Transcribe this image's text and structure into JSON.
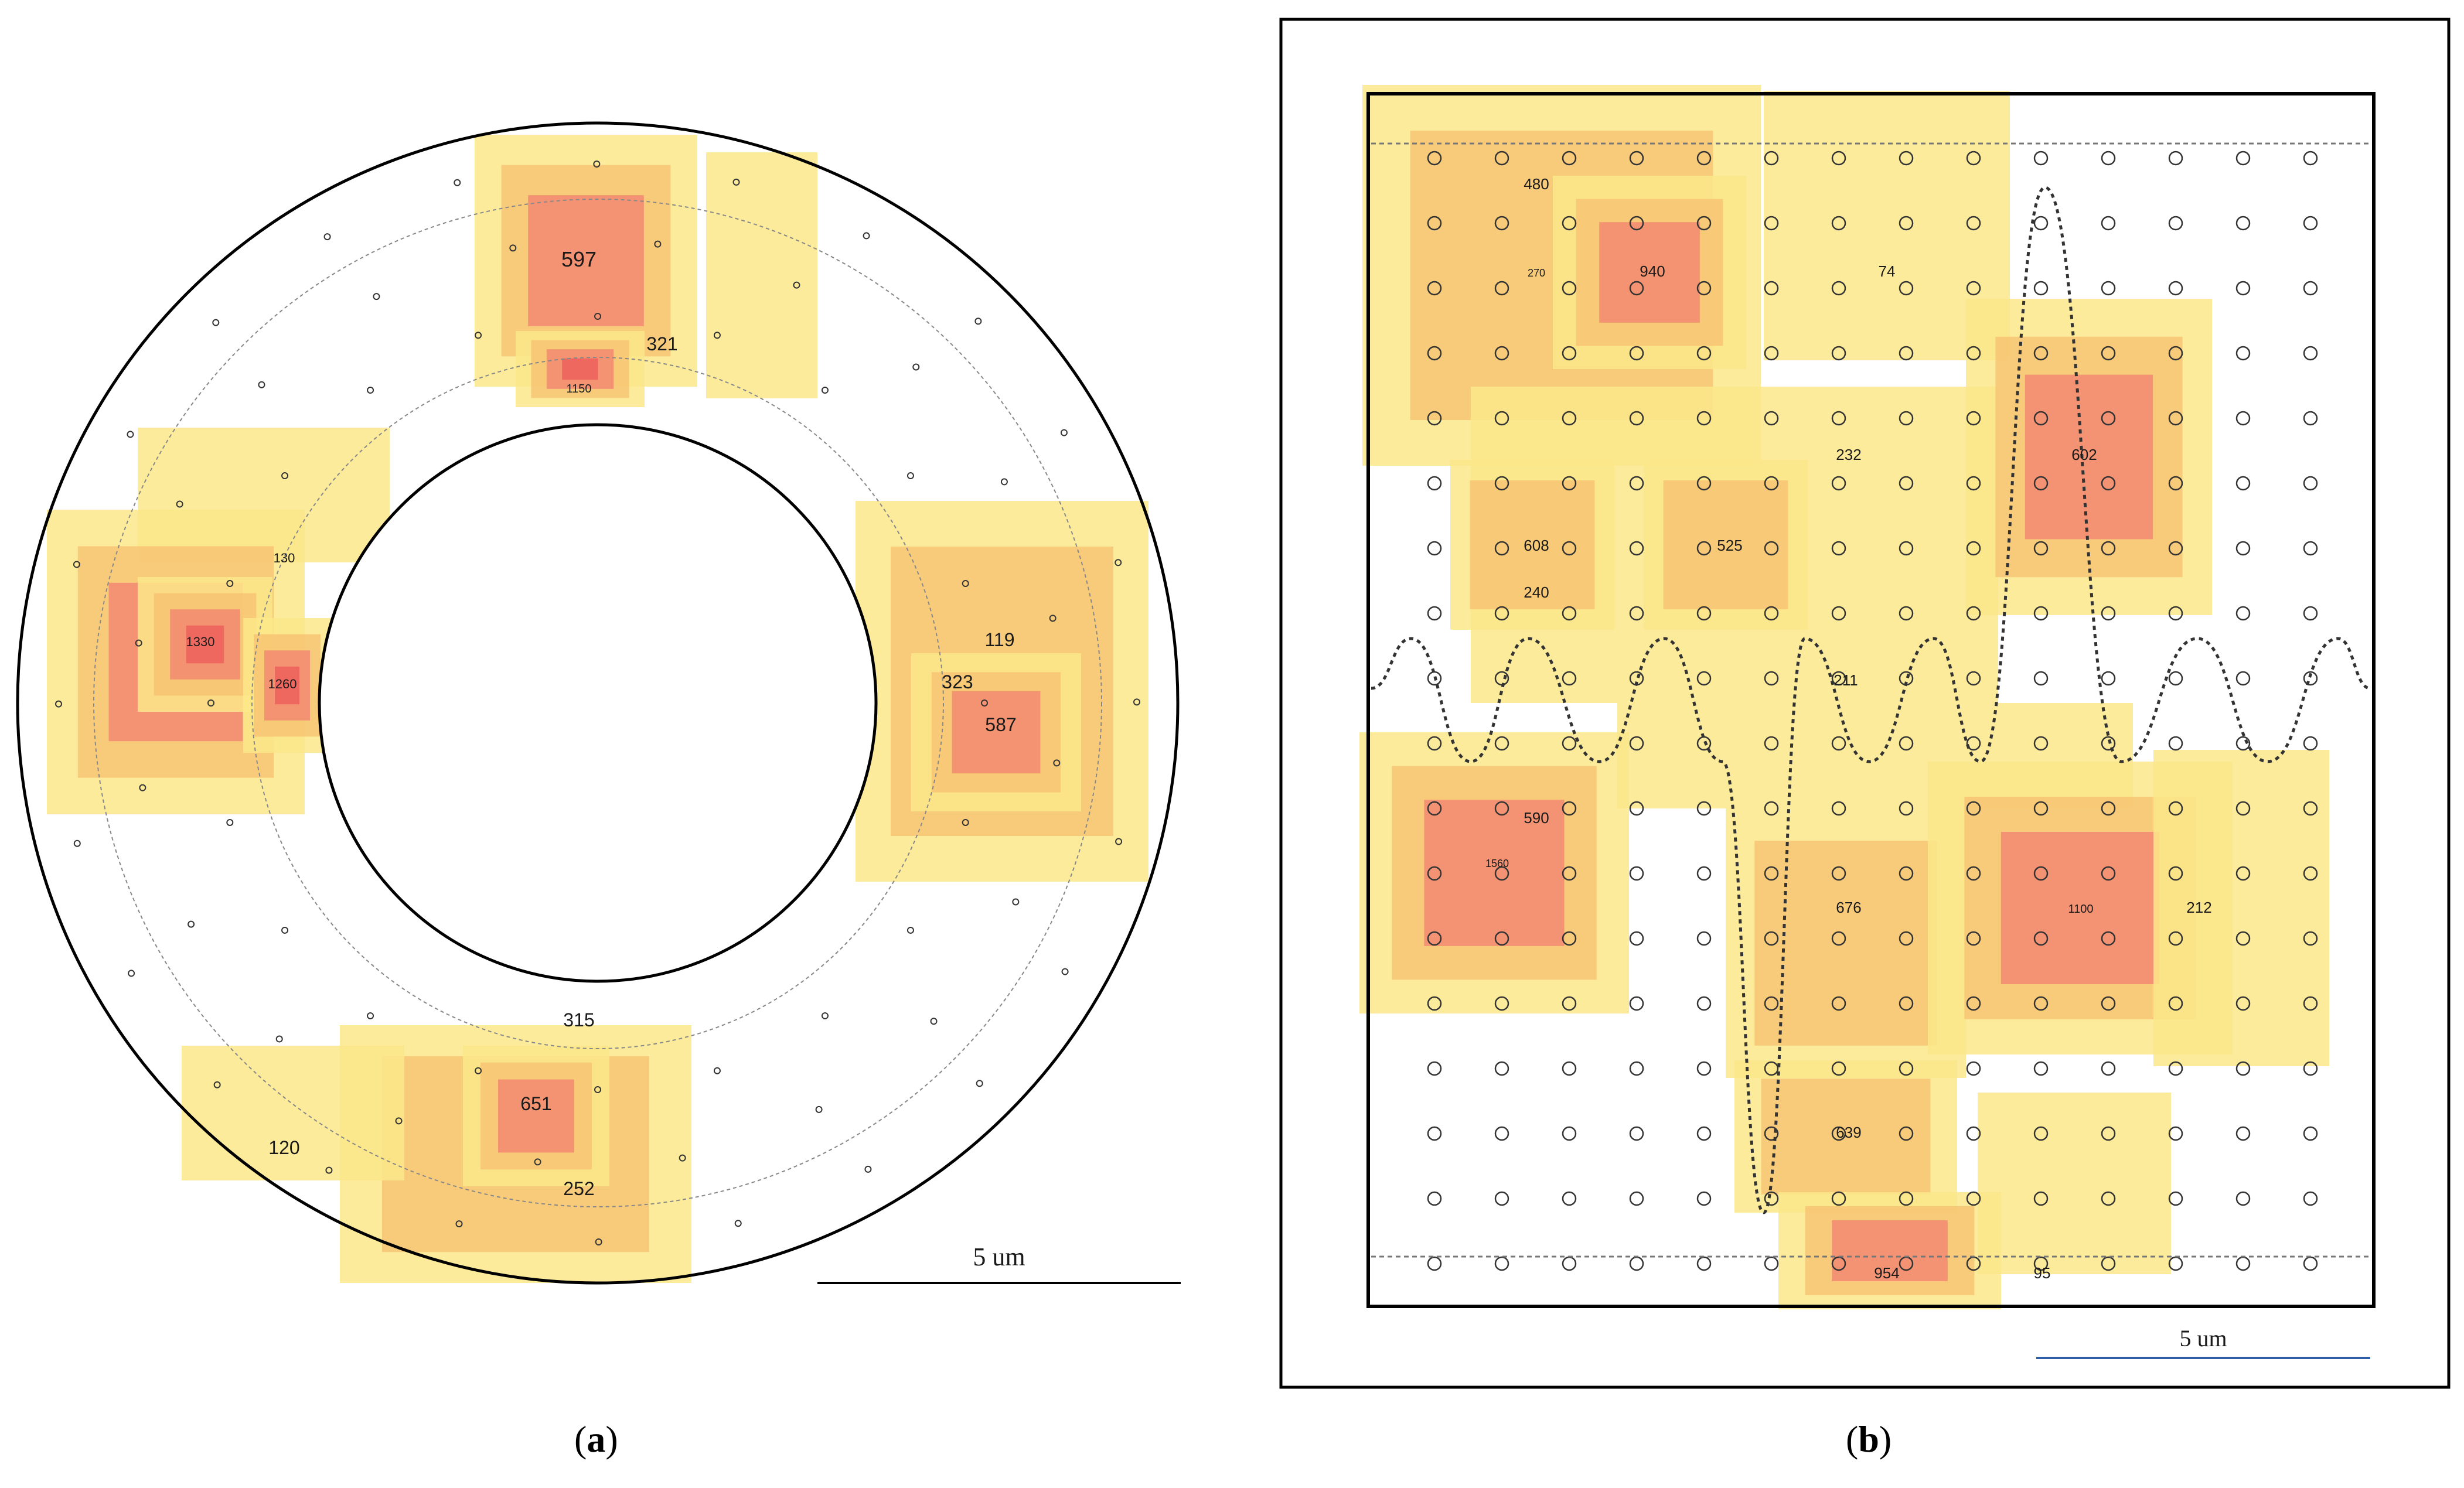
{
  "panel_a": {
    "caption_letter": "a",
    "scale_bar": "5 um",
    "regions": [
      {
        "label": "597"
      },
      {
        "label": "321"
      },
      {
        "label": "1150"
      },
      {
        "label": "130"
      },
      {
        "label": "1330"
      },
      {
        "label": "1260"
      },
      {
        "label": "119"
      },
      {
        "label": "323"
      },
      {
        "label": "587"
      },
      {
        "label": "315"
      },
      {
        "label": "651"
      },
      {
        "label": "120"
      },
      {
        "label": "252"
      }
    ]
  },
  "panel_b": {
    "caption_letter": "b",
    "scale_bar": "5 um",
    "regions": [
      {
        "label": "480"
      },
      {
        "label": "270"
      },
      {
        "label": "940"
      },
      {
        "label": "74"
      },
      {
        "label": "232"
      },
      {
        "label": "602"
      },
      {
        "label": "608"
      },
      {
        "label": "525"
      },
      {
        "label": "240"
      },
      {
        "label": "211"
      },
      {
        "label": "590"
      },
      {
        "label": "1560"
      },
      {
        "label": "676"
      },
      {
        "label": "1100"
      },
      {
        "label": "212"
      },
      {
        "label": "639"
      },
      {
        "label": "954"
      },
      {
        "label": "95"
      }
    ]
  },
  "colors": {
    "heat_low": "#FBE88A",
    "heat_mid": "#F7C070",
    "heat_high": "#F28070",
    "heat_peak": "#EE5A5A",
    "outline": "#000000",
    "scale_bar_b": "#2F5EA8"
  }
}
